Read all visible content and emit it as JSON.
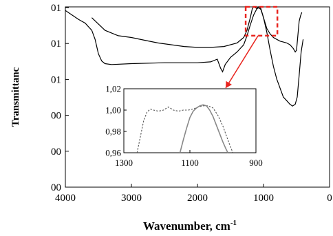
{
  "chart_data": {
    "type": "line",
    "xlabel": "Wavenumber, cm",
    "xlabel_superscript": "-1",
    "ylabel": "Transmittanc",
    "x_reversed": true,
    "xlim": [
      4000,
      0
    ],
    "x_ticks": [
      "4000",
      "3000",
      "2000",
      "1000",
      "0"
    ],
    "y_tick_labels": [
      "00",
      "00",
      "00",
      "01",
      "01",
      "01"
    ],
    "ylim": [
      0,
      1
    ],
    "highlight_box": {
      "x_range": [
        1270,
        790
      ],
      "y_range": [
        0.84,
        1.0
      ],
      "color": "#e8251f",
      "style": "dashed"
    },
    "arrow_color": "#e8251f",
    "series": [
      {
        "line_style": "solid",
        "points": [
          [
            4000,
            0.98
          ],
          [
            3800,
            0.93
          ],
          [
            3700,
            0.91
          ],
          [
            3600,
            0.87
          ],
          [
            3550,
            0.82
          ],
          [
            3500,
            0.74
          ],
          [
            3450,
            0.7
          ],
          [
            3400,
            0.685
          ],
          [
            3300,
            0.68
          ],
          [
            3000,
            0.685
          ],
          [
            2500,
            0.69
          ],
          [
            2000,
            0.69
          ],
          [
            1800,
            0.695
          ],
          [
            1700,
            0.71
          ],
          [
            1650,
            0.66
          ],
          [
            1620,
            0.64
          ],
          [
            1580,
            0.68
          ],
          [
            1500,
            0.72
          ],
          [
            1400,
            0.75
          ],
          [
            1300,
            0.79
          ],
          [
            1250,
            0.84
          ],
          [
            1200,
            0.9
          ],
          [
            1150,
            0.955
          ],
          [
            1100,
            0.99
          ],
          [
            1070,
            0.995
          ],
          [
            1040,
            0.985
          ],
          [
            1000,
            0.94
          ],
          [
            950,
            0.86
          ],
          [
            900,
            0.76
          ],
          [
            850,
            0.67
          ],
          [
            800,
            0.6
          ],
          [
            750,
            0.55
          ],
          [
            700,
            0.5
          ],
          [
            650,
            0.48
          ],
          [
            600,
            0.46
          ],
          [
            560,
            0.45
          ],
          [
            520,
            0.46
          ],
          [
            490,
            0.5
          ],
          [
            460,
            0.62
          ],
          [
            430,
            0.75
          ],
          [
            400,
            0.82
          ]
        ]
      },
      {
        "line_style": "solid",
        "points": [
          [
            3600,
            0.94
          ],
          [
            3400,
            0.87
          ],
          [
            3200,
            0.84
          ],
          [
            3000,
            0.83
          ],
          [
            2800,
            0.815
          ],
          [
            2600,
            0.8
          ],
          [
            2400,
            0.79
          ],
          [
            2200,
            0.78
          ],
          [
            2000,
            0.775
          ],
          [
            1800,
            0.775
          ],
          [
            1600,
            0.78
          ],
          [
            1400,
            0.8
          ],
          [
            1300,
            0.83
          ],
          [
            1250,
            0.87
          ],
          [
            1200,
            0.94
          ],
          [
            1170,
            0.99
          ],
          [
            1150,
            1.0
          ],
          [
            1120,
            0.995
          ],
          [
            1100,
            0.99
          ],
          [
            1080,
            1.0
          ],
          [
            1060,
            1.0
          ],
          [
            1040,
            0.99
          ],
          [
            1000,
            0.94
          ],
          [
            950,
            0.88
          ],
          [
            900,
            0.85
          ],
          [
            850,
            0.83
          ],
          [
            800,
            0.82
          ],
          [
            750,
            0.81
          ],
          [
            700,
            0.805
          ],
          [
            650,
            0.8
          ],
          [
            600,
            0.79
          ],
          [
            550,
            0.77
          ],
          [
            520,
            0.75
          ],
          [
            500,
            0.76
          ],
          [
            480,
            0.84
          ],
          [
            460,
            0.92
          ],
          [
            440,
            0.95
          ],
          [
            420,
            0.97
          ]
        ]
      }
    ],
    "inset": {
      "xlim": [
        1300,
        900
      ],
      "ylim": [
        0.96,
        1.02
      ],
      "x_ticks": [
        "1300",
        "1100",
        "900"
      ],
      "y_ticks": [
        "0,96",
        "0,98",
        "1,00",
        "1,02"
      ],
      "series": [
        {
          "line_style": "dashed",
          "color": "#555555",
          "points": [
            [
              1260,
              0.96
            ],
            [
              1250,
              0.975
            ],
            [
              1240,
              0.99
            ],
            [
              1230,
              0.998
            ],
            [
              1220,
              1.001
            ],
            [
              1210,
              1.0
            ],
            [
              1195,
              0.999
            ],
            [
              1180,
              1.0
            ],
            [
              1165,
              1.003
            ],
            [
              1150,
              1.0
            ],
            [
              1135,
              0.999
            ],
            [
              1120,
              1.0
            ],
            [
              1105,
              1.0
            ],
            [
              1090,
              1.001
            ],
            [
              1075,
              1.003
            ],
            [
              1060,
              1.004
            ],
            [
              1045,
              1.004
            ],
            [
              1030,
              1.002
            ],
            [
              1015,
              0.995
            ],
            [
              1000,
              0.985
            ],
            [
              985,
              0.972
            ],
            [
              970,
              0.96
            ]
          ]
        },
        {
          "line_style": "solid",
          "color": "#888888",
          "points": [
            [
              1130,
              0.96
            ],
            [
              1120,
              0.972
            ],
            [
              1110,
              0.983
            ],
            [
              1100,
              0.993
            ],
            [
              1090,
              0.999
            ],
            [
              1080,
              1.002
            ],
            [
              1070,
              1.004
            ],
            [
              1060,
              1.005
            ],
            [
              1050,
              1.004
            ],
            [
              1040,
              1.0
            ],
            [
              1030,
              0.994
            ],
            [
              1020,
              0.986
            ],
            [
              1010,
              0.978
            ],
            [
              1000,
              0.97
            ],
            [
              990,
              0.963
            ],
            [
              985,
              0.96
            ]
          ]
        }
      ]
    }
  }
}
